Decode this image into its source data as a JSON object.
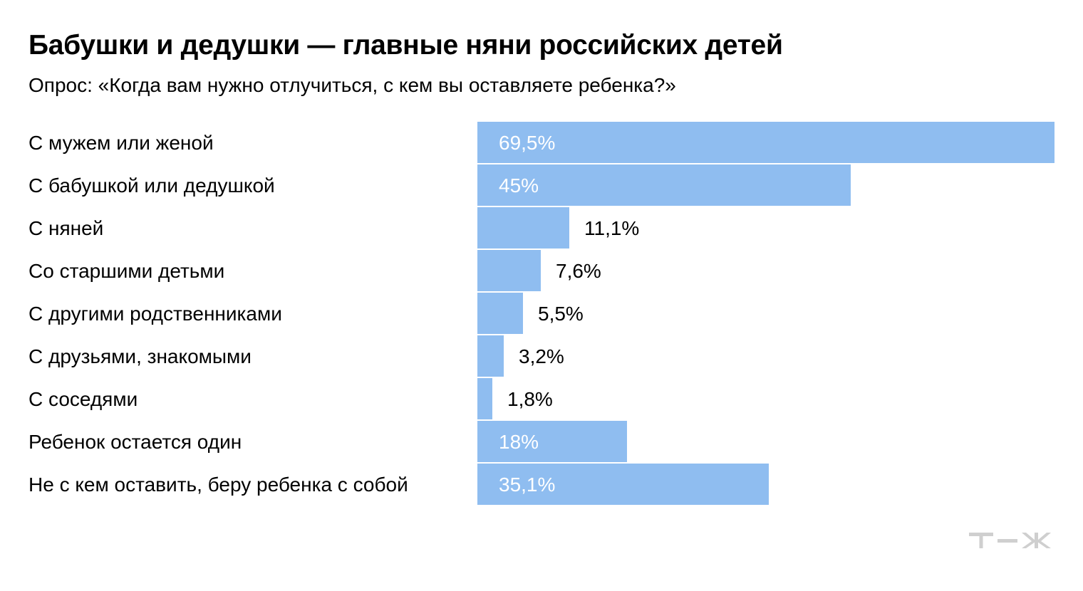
{
  "chart_data": {
    "type": "bar",
    "orientation": "horizontal",
    "title": "Бабушки и дедушки — главные няни российских детей",
    "subtitle": "Опрос: «Когда вам нужно отлучиться, с кем вы оставляете ребенка?»",
    "categories": [
      "С мужем или женой",
      "С бабушкой или дедушкой",
      "С няней",
      "Со старшими детьми",
      "С другими родственниками",
      "С друзьями, знакомыми",
      "С соседями",
      "Ребенок остается один",
      "Не с кем оставить, беру ребенка с собой"
    ],
    "values": [
      69.5,
      45,
      11.1,
      7.6,
      5.5,
      3.2,
      1.8,
      18,
      35.1
    ],
    "value_labels": [
      "69,5%",
      "45%",
      "11,1%",
      "7,6%",
      "5,5%",
      "3,2%",
      "1,8%",
      "18%",
      "35,1%"
    ],
    "unit": "%",
    "xlim": [
      0,
      69.5
    ],
    "grid": false,
    "legend": "none",
    "colors": {
      "bar": "#8fbdf0",
      "label_inside": "#ffffff",
      "label_outside": "#000000",
      "logo": "#cfcfcf"
    }
  },
  "brand": {
    "logo_icon": "tzh-logo-icon"
  }
}
